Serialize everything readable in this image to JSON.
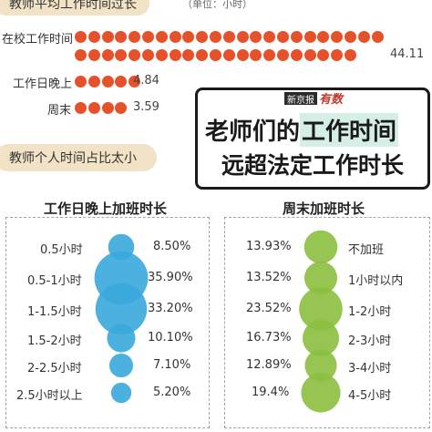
{
  "top_section": {
    "title": "教师平均工作时间过长",
    "unit": "（单位：小时）"
  },
  "mid_section": {
    "title": "教师个人时间占比太小"
  },
  "headline": {
    "logo_part1": "新京报",
    "logo_part2": "有数",
    "line1_prefix": "老师们的",
    "line1_highlight": "工作时间",
    "line2": "远超法定工作时长"
  },
  "chart_data": [
    {
      "type": "dot-bar",
      "title": "教师平均工作时间过长",
      "unit": "小时",
      "categories": [
        "在校工作时间",
        "工作日晚上",
        "周末"
      ],
      "values": [
        44.11,
        4.84,
        3.59
      ],
      "value_labels": [
        "44.11",
        "4.84",
        "3.59"
      ],
      "color": "#e5512b"
    },
    {
      "type": "bubble",
      "title": "工作日晚上加班时长",
      "categories": [
        "0.5小时",
        "0.5-1小时",
        "1-1.5小时",
        "1.5-2小时",
        "2-2.5小时",
        "2.5小时以上"
      ],
      "values": [
        8.5,
        35.9,
        33.2,
        10.1,
        7.1,
        5.2
      ],
      "value_labels": [
        "8.50%",
        "35.90%",
        "33.20%",
        "10.10%",
        "7.10%",
        "5.20%"
      ],
      "color": "#3aa8dc"
    },
    {
      "type": "bubble",
      "title": "周末加班时长",
      "categories": [
        "不加班",
        "1小时以内",
        "1-2小时",
        "2-3小时",
        "3-4小时",
        "4-5小时"
      ],
      "values": [
        13.93,
        13.52,
        23.52,
        16.73,
        12.89,
        19.4
      ],
      "value_labels": [
        "13.93%",
        "13.52%",
        "23.52%",
        "16.73%",
        "12.89%",
        "19.4%"
      ],
      "color": "#8bbf3f"
    }
  ]
}
